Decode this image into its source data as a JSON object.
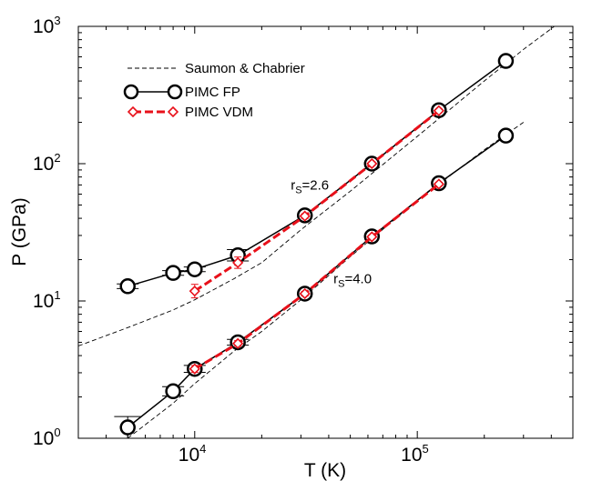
{
  "chart_data": {
    "type": "line",
    "xscale": "log",
    "yscale": "log",
    "xlim": [
      3000,
      500000
    ],
    "ylim": [
      1,
      1000
    ],
    "xlabel": "T (K)",
    "ylabel": "P (GPa)",
    "x_major_ticks": [
      {
        "value": 10000,
        "base": "10",
        "exp": "4"
      },
      {
        "value": 100000,
        "base": "10",
        "exp": "5"
      }
    ],
    "y_major_ticks": [
      {
        "value": 1,
        "base": "10",
        "exp": "0"
      },
      {
        "value": 10,
        "base": "10",
        "exp": "1"
      },
      {
        "value": 100,
        "base": "10",
        "exp": "2"
      },
      {
        "value": 1000,
        "base": "10",
        "exp": "3"
      }
    ],
    "legend": {
      "position": "top-left",
      "entries": [
        {
          "label": "Saumon & Chabrier",
          "series": "saumon"
        },
        {
          "label": "PIMC FP",
          "series": "fp"
        },
        {
          "label": "PIMC VDM",
          "series": "vdm"
        }
      ]
    },
    "annotations": [
      {
        "label_main": "r",
        "label_sub": "S",
        "label_tail": "=2.6",
        "x": 27000,
        "y": 65
      },
      {
        "label_main": "r",
        "label_sub": "S",
        "label_tail": "=4.0",
        "x": 42000,
        "y": 13.5
      }
    ],
    "colors": {
      "fp": "#000000",
      "vdm": "#e8101a",
      "saumon": "#000000"
    },
    "series": [
      {
        "key": "fp-rs26",
        "group": "fp",
        "x": [
          5000,
          8000,
          10000,
          15625,
          31250,
          62500,
          125000,
          250000
        ],
        "y": [
          12.8,
          16.0,
          17.0,
          21.5,
          42.0,
          100.0,
          245.0,
          560.0
        ],
        "yerr_rel": [
          0.04,
          0.04,
          0.04,
          0.1,
          0.03,
          0.03,
          0.03,
          0.02
        ],
        "xerr_rel": [
          0.12,
          0.12,
          0.12,
          0.12,
          0.08,
          0.08,
          0.08,
          0.08
        ]
      },
      {
        "key": "fp-rs40",
        "group": "fp",
        "x": [
          5000,
          8000,
          10000,
          15625,
          31250,
          62500,
          125000,
          250000
        ],
        "y": [
          1.2,
          2.2,
          3.2,
          5.0,
          11.3,
          29.5,
          72.0,
          160.0
        ],
        "yerr_rel": [
          0.2,
          0.08,
          0.06,
          0.05,
          0.04,
          0.03,
          0.03,
          0.03
        ],
        "xerr_rel": [
          0.15,
          0.12,
          0.12,
          0.12,
          0.08,
          0.08,
          0.08,
          0.08
        ]
      },
      {
        "key": "vdm-rs26",
        "group": "vdm",
        "x": [
          10000,
          15625,
          31250,
          62500,
          125000
        ],
        "y": [
          11.8,
          19.0,
          41.5,
          100.0,
          243.0
        ],
        "yerr_rel": [
          0.12,
          0.1,
          0.04,
          0.03,
          0.03
        ]
      },
      {
        "key": "vdm-rs40",
        "group": "vdm",
        "x": [
          10000,
          15625,
          31250,
          62500,
          125000
        ],
        "y": [
          3.2,
          4.9,
          11.3,
          29.3,
          71.0
        ],
        "yerr_rel": [
          0.06,
          0.05,
          0.04,
          0.03,
          0.03
        ]
      },
      {
        "key": "saumon-rs26",
        "group": "saumon",
        "x": [
          3000,
          5000,
          8000,
          10000,
          15000,
          20000,
          30000,
          50000,
          100000,
          200000,
          300000,
          500000
        ],
        "y": [
          4.7,
          6.4,
          8.6,
          10.2,
          14.5,
          19.0,
          33.0,
          63.0,
          158.0,
          400.0,
          680.0,
          1260.0
        ]
      },
      {
        "key": "saumon-rs40",
        "group": "saumon",
        "x": [
          5000,
          8000,
          10000,
          15000,
          20000,
          30000,
          50000,
          100000,
          200000,
          300000
        ],
        "y": [
          1.0,
          1.8,
          2.5,
          4.3,
          6.0,
          10.2,
          21.0,
          54.0,
          126.0,
          200.0
        ]
      }
    ]
  }
}
